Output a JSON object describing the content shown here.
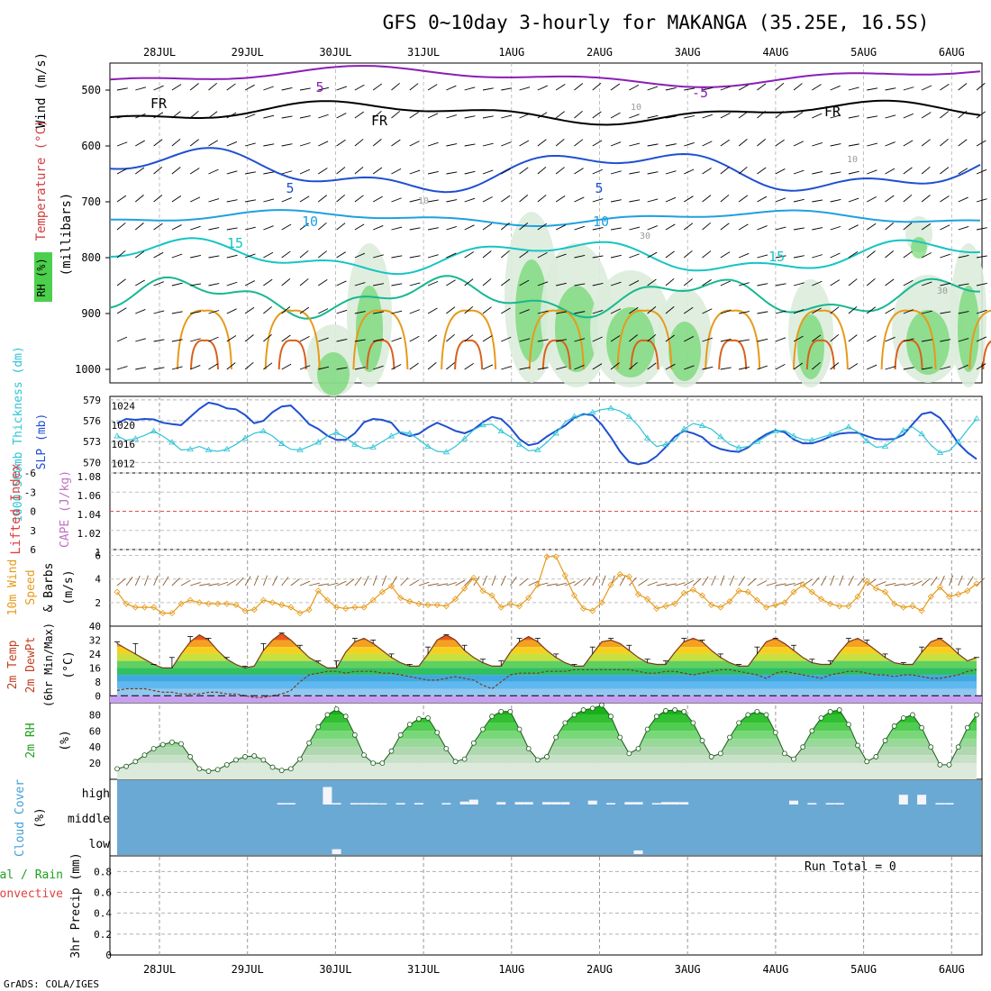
{
  "title": "GFS 0~10day 3-hourly for MAKANGA (35.25E, 16.5S)",
  "credit": "GrADS: COLA/IGES",
  "run_total": "Run Total = 0",
  "dates": [
    "28JUL",
    "29JUL",
    "30JUL",
    "31JUL",
    "1AUG",
    "2AUG",
    "3AUG",
    "4AUG",
    "5AUG",
    "6AUG"
  ],
  "colors": {
    "purple": "#8a1fb5",
    "blue": "#1f4fd1",
    "lightblue": "#1fa0e0",
    "teal": "#16c4c4",
    "green": "#16b890",
    "orange": "#e69a1a",
    "darkorange": "#d9601a",
    "rhgreen": "#4ccf4c",
    "cloud": "#6aa9d4",
    "cyan": "#2ec4d6"
  },
  "panels": {
    "upper": {
      "ylabel_wind": "Wind (m/s)",
      "ylabel_temp": "Temperature (°C)",
      "ylabel_rh": "RH (%)",
      "ylabel_mb": "(millibars)",
      "ticks": [
        "500",
        "600",
        "700",
        "800",
        "900",
        "1000"
      ],
      "contour_labels": [
        "5",
        "-5",
        "FR",
        "FR",
        "FR",
        "5",
        "5",
        "10",
        "10",
        "15",
        "15",
        "10",
        "10",
        "10",
        "30",
        "30"
      ]
    },
    "thickness": {
      "ylabel_left": "1000-500mb Thickness (dm)",
      "ylabel_right": "SLP (mb)",
      "left_ticks": [
        "579",
        "576",
        "573",
        "570"
      ],
      "right_ticks": [
        "1024",
        "1020",
        "1016",
        "1012"
      ]
    },
    "cape": {
      "ylabel_left": "Lifted Index",
      "ylabel_right": "CAPE (J/kg)",
      "left_ticks": [
        "-6",
        "-3",
        "0",
        "3",
        "6"
      ],
      "right_ticks": [
        "1.08",
        "1.06",
        "1.04",
        "1.02",
        "1"
      ]
    },
    "wind10m": {
      "ylabel": "10m Wind Speed & Barbs",
      "unit": "(m/s)",
      "ticks": [
        "6",
        "4",
        "2"
      ]
    },
    "temp2m": {
      "ylabel": "2m Temp 2m DewPt (6hr Min/Max)",
      "unit": "(°C)",
      "ticks": [
        "40",
        "32",
        "24",
        "16",
        "8",
        "0"
      ]
    },
    "rh2m": {
      "ylabel": "2m RH",
      "unit": "(%)",
      "ticks": [
        "80",
        "60",
        "40",
        "20"
      ]
    },
    "cloud": {
      "ylabel": "Cloud Cover",
      "unit": "(%)",
      "levels": [
        "high",
        "middle",
        "low"
      ]
    },
    "precip": {
      "ylabel_left_1": "Total / Rain",
      "ylabel_left_2": "Convective",
      "ylabel": "3hr Precip (mm)",
      "ticks": [
        "0.8",
        "0.6",
        "0.4",
        "0.2",
        "0"
      ]
    }
  },
  "chart_data": {
    "type": "line",
    "title": "GFS 0~10day 3-hourly for MAKANGA (35.25E, 16.5S)",
    "x_dates": [
      "28JUL",
      "29JUL",
      "30JUL",
      "31JUL",
      "1AUG",
      "2AUG",
      "3AUG",
      "4AUG",
      "5AUG",
      "6AUG"
    ],
    "step_hours": 3,
    "thickness_dm": [
      573.8,
      573.2,
      573.4,
      573.9,
      574.5,
      573.8,
      572.9,
      571.8,
      571.9,
      572.3,
      571.8,
      571.6,
      571.9,
      572.6,
      573.5,
      574.2,
      574.5,
      573.8,
      572.7,
      571.9,
      571.8,
      572.3,
      572.9,
      573.8,
      574.3,
      573.6,
      572.6,
      572.0,
      572.2,
      573.0,
      573.8,
      574.4,
      574.2,
      573.3,
      572.3,
      571.6,
      571.5,
      572.3,
      573.4,
      574.7,
      575.4,
      575.5,
      574.5,
      573.7,
      572.6,
      571.7,
      571.8,
      572.9,
      574.2,
      575.8,
      576.6,
      576.8,
      577.2,
      577.6,
      577.8,
      577.4,
      576.6,
      575.3,
      573.5,
      572.3,
      572.6,
      573.2,
      574.8,
      575.6,
      575.3,
      574.8,
      573.7,
      572.6,
      572.1,
      572.3,
      573.0,
      573.8,
      574.5,
      574.6,
      573.8,
      573.3,
      573.2,
      573.6,
      574.0,
      574.5,
      575.1,
      574.4,
      573.1,
      572.2,
      572.3,
      573.3,
      574.6,
      575.1,
      574.1,
      572.5,
      571.4,
      571.7,
      573.0,
      574.7,
      576.3
    ],
    "slp_mb": [
      1020.4,
      1021.3,
      1021.1,
      1021.3,
      1021.2,
      1020.5,
      1020.2,
      1020.0,
      1021.7,
      1023.4,
      1024.7,
      1024.3,
      1023.5,
      1023.3,
      1022.1,
      1020.4,
      1020.9,
      1022.7,
      1023.9,
      1024.1,
      1022.3,
      1020.2,
      1019.2,
      1017.8,
      1016.9,
      1016.9,
      1018.3,
      1020.6,
      1021.3,
      1021.1,
      1020.5,
      1018.3,
      1017.7,
      1018.2,
      1019.5,
      1020.5,
      1019.7,
      1018.8,
      1018.3,
      1019.1,
      1020.6,
      1021.7,
      1021.3,
      1019.5,
      1017.1,
      1015.8,
      1016.2,
      1017.6,
      1018.8,
      1019.9,
      1021.5,
      1022.3,
      1022.1,
      1020.1,
      1017.5,
      1014.5,
      1012.3,
      1011.8,
      1012.2,
      1013.5,
      1015.4,
      1017.6,
      1018.8,
      1018.3,
      1017.5,
      1015.8,
      1015.0,
      1014.6,
      1014.4,
      1015.3,
      1016.9,
      1018.1,
      1018.9,
      1018.5,
      1017.0,
      1016.2,
      1016.2,
      1016.8,
      1017.6,
      1018.2,
      1018.4,
      1018.4,
      1017.7,
      1017.1,
      1017.0,
      1017.1,
      1018.0,
      1020.2,
      1022.3,
      1022.7,
      1021.5,
      1019.0,
      1016.2,
      1014.3,
      1012.9
    ],
    "lifted_index": [
      0,
      0,
      0,
      0,
      0,
      0,
      0,
      0,
      0,
      0,
      0,
      0,
      0,
      0,
      0,
      0,
      0,
      0,
      0,
      0,
      0,
      0,
      0,
      0,
      0,
      0,
      0,
      0,
      0,
      0,
      0,
      0,
      0,
      0,
      0,
      0,
      0,
      0,
      0,
      0,
      0,
      0,
      0,
      0,
      0,
      0,
      0,
      0,
      0,
      0,
      0,
      0,
      0,
      0,
      0,
      0,
      0,
      0,
      0,
      0,
      0,
      0,
      0,
      0,
      0,
      0,
      0,
      0,
      0,
      0,
      0,
      0,
      0,
      0,
      0,
      0,
      0,
      0,
      0,
      0,
      0,
      0,
      0,
      0,
      0,
      0,
      0,
      0,
      0,
      0,
      0,
      0,
      0,
      0,
      0
    ],
    "cape_jkg": [
      1,
      1,
      1,
      1,
      1,
      1,
      1,
      1,
      1,
      1,
      1,
      1,
      1,
      1,
      1,
      1,
      1,
      1,
      1,
      1,
      1,
      1,
      1,
      1,
      1,
      1,
      1,
      1,
      1,
      1,
      1,
      1,
      1,
      1,
      1,
      1,
      1,
      1,
      1,
      1,
      1,
      1,
      1,
      1,
      1,
      1,
      1,
      1,
      1,
      1,
      1,
      1,
      1,
      1,
      1,
      1,
      1,
      1,
      1,
      1,
      1,
      1,
      1,
      1,
      1,
      1,
      1,
      1,
      1,
      1,
      1,
      1,
      1,
      1,
      1,
      1,
      1,
      1,
      1,
      1,
      1,
      1,
      1,
      1,
      1,
      1,
      1,
      1,
      1,
      1,
      1,
      1,
      1,
      1,
      1
    ],
    "wind10m_ms": [
      2.9,
      1.9,
      1.6,
      1.6,
      1.6,
      1.1,
      1.1,
      1.9,
      2.2,
      2.0,
      1.9,
      1.9,
      1.9,
      1.8,
      1.3,
      1.4,
      2.2,
      2.0,
      1.8,
      1.6,
      1.1,
      1.4,
      3.0,
      2.2,
      1.6,
      1.5,
      1.6,
      1.6,
      2.2,
      2.9,
      3.4,
      2.4,
      2.1,
      1.9,
      1.8,
      1.8,
      1.7,
      2.3,
      3.2,
      4.1,
      3.0,
      2.6,
      1.6,
      1.9,
      1.7,
      2.4,
      3.5,
      5.9,
      5.9,
      4.3,
      2.6,
      1.5,
      1.3,
      2.0,
      3.5,
      4.4,
      4.2,
      2.7,
      2.3,
      1.5,
      1.7,
      1.9,
      2.8,
      3.1,
      2.6,
      1.8,
      1.6,
      2.1,
      3.0,
      2.9,
      2.2,
      1.6,
      1.8,
      2.0,
      2.9,
      3.5,
      2.9,
      2.3,
      1.9,
      1.7,
      1.7,
      2.5,
      3.8,
      3.2,
      2.9,
      1.9,
      1.6,
      1.7,
      1.3,
      2.5,
      3.3,
      2.5,
      2.7,
      3.0,
      3.6
    ],
    "temp2m_c": [
      30,
      27,
      24,
      21,
      18,
      16,
      16,
      24,
      31,
      35,
      32,
      26,
      21,
      18,
      16,
      17,
      26,
      32,
      36,
      32,
      27,
      22,
      19,
      16,
      16,
      25,
      31,
      33,
      30,
      26,
      22,
      19,
      17,
      17,
      24,
      32,
      35,
      32,
      26,
      22,
      19,
      17,
      17,
      25,
      31,
      34,
      31,
      26,
      22,
      19,
      17,
      17,
      24,
      31,
      32,
      30,
      26,
      22,
      19,
      18,
      18,
      25,
      31,
      33,
      31,
      26,
      22,
      19,
      17,
      17,
      24,
      31,
      33,
      30,
      26,
      22,
      19,
      18,
      18,
      25,
      31,
      33,
      30,
      26,
      22,
      19,
      18,
      18,
      25,
      31,
      33,
      29,
      24,
      20,
      22
    ],
    "tmax_6h": [
      31,
      30,
      30,
      24,
      18,
      17,
      22,
      30,
      34,
      36,
      33,
      29,
      22,
      19,
      17,
      21,
      30,
      34,
      36,
      34,
      29,
      24,
      20,
      17,
      20,
      28,
      33,
      33,
      32,
      28,
      24,
      21,
      18,
      20,
      28,
      34,
      35,
      34,
      29,
      24,
      21,
      18,
      20,
      28,
      33,
      34,
      33,
      29,
      24,
      21,
      18,
      20,
      28,
      32,
      33,
      32,
      29,
      24,
      21,
      19,
      20,
      28,
      33,
      33,
      32,
      29,
      24,
      21,
      18,
      20,
      28,
      33,
      33,
      32,
      29,
      24,
      21,
      19,
      20,
      28,
      33,
      33,
      32,
      29,
      24,
      21,
      19,
      20,
      28,
      33,
      33,
      31,
      27,
      22,
      22
    ],
    "dewpt2m_c": [
      3,
      4,
      4,
      4,
      3,
      2,
      2,
      1,
      1,
      1,
      2,
      2,
      1,
      1,
      0,
      -1,
      -1,
      0,
      1,
      3,
      8,
      12,
      13,
      14,
      14,
      13,
      14,
      14,
      14,
      13,
      13,
      12,
      11,
      10,
      9,
      9,
      10,
      11,
      10,
      9,
      6,
      4,
      8,
      12,
      13,
      13,
      13,
      14,
      14,
      14,
      15,
      15,
      15,
      15,
      15,
      15,
      15,
      14,
      13,
      13,
      14,
      14,
      13,
      12,
      13,
      14,
      15,
      15,
      14,
      13,
      12,
      10,
      13,
      14,
      13,
      12,
      11,
      10,
      12,
      13,
      14,
      14,
      13,
      12,
      12,
      11,
      12,
      12,
      11,
      10,
      10,
      11,
      12,
      14,
      15
    ],
    "rh2m_pct": [
      13,
      16,
      22,
      30,
      38,
      43,
      46,
      44,
      28,
      13,
      10,
      12,
      18,
      24,
      28,
      29,
      24,
      15,
      11,
      13,
      25,
      45,
      65,
      80,
      87,
      78,
      55,
      30,
      20,
      20,
      35,
      55,
      68,
      75,
      76,
      58,
      38,
      22,
      25,
      45,
      62,
      78,
      84,
      84,
      62,
      38,
      24,
      28,
      52,
      70,
      80,
      86,
      88,
      92,
      78,
      52,
      32,
      38,
      62,
      78,
      85,
      86,
      84,
      70,
      48,
      28,
      32,
      52,
      70,
      80,
      84,
      80,
      58,
      32,
      25,
      40,
      60,
      76,
      84,
      86,
      68,
      42,
      22,
      28,
      48,
      66,
      76,
      80,
      64,
      40,
      18,
      18,
      40,
      64,
      80
    ],
    "cloud_high_pct": [
      0,
      0,
      0,
      0,
      0,
      0,
      0,
      0,
      0,
      0,
      0,
      0,
      0,
      0,
      0,
      0,
      0,
      0,
      6,
      6,
      0,
      0,
      0,
      72,
      6,
      0,
      6,
      6,
      6,
      5,
      0,
      6,
      0,
      6,
      0,
      0,
      6,
      0,
      12,
      20,
      0,
      0,
      10,
      0,
      10,
      10,
      0,
      10,
      10,
      10,
      0,
      0,
      16,
      0,
      6,
      0,
      10,
      10,
      0,
      6,
      10,
      10,
      10,
      0,
      0,
      0,
      0,
      0,
      0,
      0,
      0,
      0,
      0,
      0,
      16,
      0,
      6,
      0,
      6,
      6,
      0,
      0,
      0,
      0,
      0,
      0,
      40,
      0,
      40,
      0,
      6,
      6,
      0,
      0,
      0
    ],
    "cloud_low_pct": [
      0,
      0,
      0,
      0,
      0,
      0,
      0,
      0,
      0,
      0,
      0,
      0,
      0,
      0,
      0,
      0,
      0,
      0,
      0,
      0,
      0,
      0,
      0,
      0,
      20,
      0,
      0,
      0,
      0,
      0,
      0,
      0,
      0,
      0,
      0,
      0,
      0,
      0,
      0,
      0,
      0,
      0,
      0,
      0,
      0,
      0,
      0,
      0,
      0,
      0,
      0,
      0,
      0,
      0,
      0,
      0,
      0,
      15,
      0,
      0,
      0,
      0,
      0,
      0,
      0,
      0,
      0,
      0,
      0,
      0,
      0,
      0,
      0,
      0,
      0,
      0,
      0,
      0,
      0,
      0,
      0,
      0,
      0,
      0,
      0,
      0,
      0,
      0,
      0,
      0,
      0,
      0,
      0,
      0,
      0
    ],
    "precip_3hr_mm": [
      0,
      0,
      0,
      0,
      0,
      0,
      0,
      0,
      0,
      0,
      0,
      0,
      0,
      0,
      0,
      0,
      0,
      0,
      0,
      0,
      0,
      0,
      0,
      0,
      0,
      0,
      0,
      0,
      0,
      0,
      0,
      0,
      0,
      0,
      0,
      0,
      0,
      0,
      0,
      0,
      0,
      0,
      0,
      0,
      0,
      0,
      0,
      0,
      0,
      0,
      0,
      0,
      0,
      0,
      0,
      0,
      0,
      0,
      0,
      0,
      0,
      0,
      0,
      0,
      0,
      0,
      0,
      0,
      0,
      0,
      0,
      0,
      0,
      0,
      0,
      0,
      0,
      0,
      0,
      0,
      0,
      0,
      0,
      0,
      0,
      0,
      0,
      0,
      0,
      0,
      0,
      0,
      0,
      0,
      0
    ],
    "ranges": {
      "thickness_dm": [
        568.5,
        579.5
      ],
      "slp_mb": [
        1010,
        1026
      ],
      "lifted_index": [
        -6,
        6
      ],
      "cape_jkg": [
        1,
        1.08
      ],
      "wind10m_ms": [
        0,
        6.5
      ],
      "temp2m_c": [
        -4,
        40
      ],
      "rh2m_pct": [
        0,
        95
      ],
      "precip_mm": [
        0,
        0.95
      ]
    }
  }
}
